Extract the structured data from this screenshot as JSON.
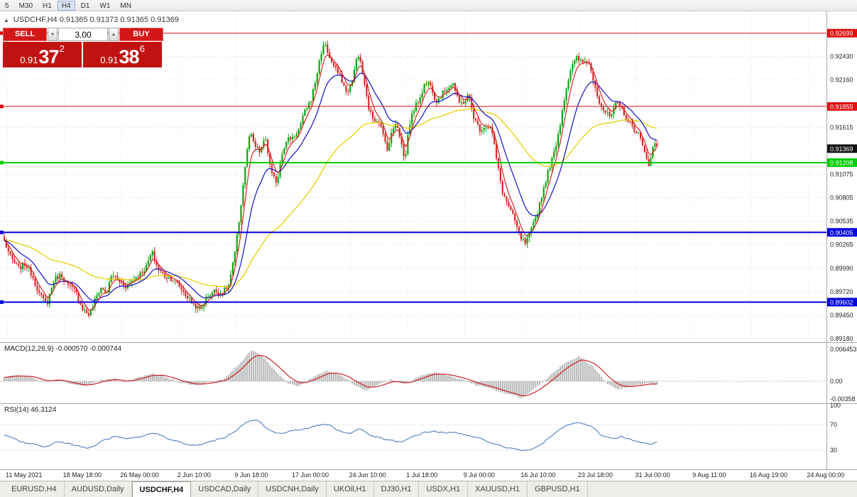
{
  "toolbar": {
    "items": [
      "5",
      "M30",
      "H1",
      "H4",
      "D1",
      "W1",
      "MN"
    ],
    "active": "H4"
  },
  "chart_header": {
    "collapse_icon": "▲",
    "ohlc_text": "USDCHF,H4 0.91365 0.91373 0.91365 0.91369"
  },
  "trade_panel": {
    "sell_label": "SELL",
    "buy_label": "BUY",
    "volume": "3.00",
    "spin_up_icon": "▲",
    "spin_down_icon": "▼",
    "sell_price": {
      "prefix": "0.91",
      "big": "37",
      "sup": "2"
    },
    "buy_price": {
      "prefix": "0.91",
      "big": "38",
      "sup": "6"
    }
  },
  "tabs": {
    "active": "USDCHF,H4",
    "items": [
      "EURUSD,H4",
      "AUDUSD,Daily",
      "USDCHF,H4",
      "USDCAD,Daily",
      "USDCNH,Daily",
      "UKOil,H1",
      "DJ30,H1",
      "USDX,H1",
      "XAUUSD,H1",
      "GBPUSD,H1"
    ]
  },
  "chart_data": {
    "type": "candlestick",
    "symbol": "USDCHF",
    "timeframe": "H4",
    "ohlc": {
      "open": 0.91365,
      "high": 0.91373,
      "low": 0.91365,
      "close": 0.91369
    },
    "ylim": [
      0.8914,
      0.9295
    ],
    "y_ticks": [
      "0.92430",
      "0.92160",
      "0.91615",
      "0.91075",
      "0.90805",
      "0.90535",
      "0.90265",
      "0.89990",
      "0.89720",
      "0.89450",
      "0.89180"
    ],
    "x_labels": [
      "11 May 2021",
      "18 May 18:00",
      "26 May 00:00",
      "2 Jun 10:00",
      "9 Jun 18:00",
      "17 Jun 00:00",
      "24 Jun 10:00",
      "1 Jul 18:00",
      "9 Jul 00:00",
      "16 Jul 10:00",
      "23 Jul 18:00",
      "31 Jul 00:00",
      "9 Aug 11:00",
      "16 Aug 19:00",
      "24 Aug 00:00"
    ],
    "hlines": [
      {
        "price": 0.92699,
        "label": "0.92699",
        "color": "#e01010",
        "width": 1
      },
      {
        "price": 0.91855,
        "label": "0.91855",
        "color": "#e01010",
        "width": 1
      },
      {
        "price": 0.91208,
        "label": "0.91208",
        "color": "#00cc00",
        "width": 2
      },
      {
        "price": 0.90405,
        "label": "0.90405",
        "color": "#0000dd",
        "width": 2
      },
      {
        "price": 0.89602,
        "label": "0.89602",
        "color": "#0000dd",
        "width": 2
      }
    ],
    "current_price": {
      "value": 0.91369,
      "label": "0.91369",
      "badge_color": "#111111"
    },
    "candle_up_color": "#0fa30f",
    "candle_down_color": "#d42a2a",
    "ma_colors": {
      "fast": "#dd1111",
      "mid": "#1111cc",
      "slow": "#e8cf00"
    },
    "price_path": [
      [
        0,
        0.9046
      ],
      [
        8,
        0.9026
      ],
      [
        16,
        0.901
      ],
      [
        26,
        0.8999
      ],
      [
        36,
        0.9004
      ],
      [
        46,
        0.899
      ],
      [
        56,
        0.8968
      ],
      [
        66,
        0.8958
      ],
      [
        76,
        0.8986
      ],
      [
        86,
        0.8992
      ],
      [
        96,
        0.8979
      ],
      [
        106,
        0.8973
      ],
      [
        116,
        0.8953
      ],
      [
        126,
        0.8945
      ],
      [
        134,
        0.8963
      ],
      [
        142,
        0.8977
      ],
      [
        150,
        0.897
      ],
      [
        158,
        0.8993
      ],
      [
        168,
        0.8984
      ],
      [
        178,
        0.8978
      ],
      [
        188,
        0.8987
      ],
      [
        198,
        0.8993
      ],
      [
        206,
        0.9001
      ],
      [
        214,
        0.9018
      ],
      [
        222,
        0.8999
      ],
      [
        232,
        0.899
      ],
      [
        242,
        0.8987
      ],
      [
        252,
        0.8979
      ],
      [
        262,
        0.8968
      ],
      [
        272,
        0.8958
      ],
      [
        282,
        0.8951
      ],
      [
        292,
        0.8967
      ],
      [
        302,
        0.8973
      ],
      [
        312,
        0.897
      ],
      [
        322,
        0.8979
      ],
      [
        330,
        0.9012
      ],
      [
        338,
        0.9062
      ],
      [
        346,
        0.9122
      ],
      [
        352,
        0.9156
      ],
      [
        358,
        0.9141
      ],
      [
        366,
        0.9133
      ],
      [
        374,
        0.9149
      ],
      [
        382,
        0.9108
      ],
      [
        390,
        0.9098
      ],
      [
        398,
        0.9136
      ],
      [
        406,
        0.9148
      ],
      [
        414,
        0.9151
      ],
      [
        422,
        0.9161
      ],
      [
        430,
        0.9181
      ],
      [
        438,
        0.9193
      ],
      [
        446,
        0.9221
      ],
      [
        452,
        0.9247
      ],
      [
        458,
        0.9259
      ],
      [
        464,
        0.9241
      ],
      [
        472,
        0.9229
      ],
      [
        480,
        0.9219
      ],
      [
        488,
        0.9201
      ],
      [
        496,
        0.9212
      ],
      [
        502,
        0.9243
      ],
      [
        508,
        0.9237
      ],
      [
        514,
        0.9206
      ],
      [
        520,
        0.9181
      ],
      [
        526,
        0.9171
      ],
      [
        534,
        0.9169
      ],
      [
        540,
        0.9151
      ],
      [
        546,
        0.9136
      ],
      [
        552,
        0.9156
      ],
      [
        558,
        0.9169
      ],
      [
        564,
        0.9149
      ],
      [
        570,
        0.9121
      ],
      [
        576,
        0.9163
      ],
      [
        582,
        0.9181
      ],
      [
        590,
        0.9193
      ],
      [
        598,
        0.9211
      ],
      [
        606,
        0.9213
      ],
      [
        614,
        0.9191
      ],
      [
        622,
        0.9199
      ],
      [
        630,
        0.9207
      ],
      [
        638,
        0.9213
      ],
      [
        646,
        0.9189
      ],
      [
        654,
        0.9191
      ],
      [
        660,
        0.9199
      ],
      [
        668,
        0.9171
      ],
      [
        676,
        0.9159
      ],
      [
        684,
        0.9163
      ],
      [
        692,
        0.9161
      ],
      [
        700,
        0.9121
      ],
      [
        708,
        0.9086
      ],
      [
        716,
        0.9071
      ],
      [
        724,
        0.9056
      ],
      [
        732,
        0.9036
      ],
      [
        740,
        0.9027
      ],
      [
        748,
        0.9043
      ],
      [
        756,
        0.9061
      ],
      [
        764,
        0.9086
      ],
      [
        772,
        0.9111
      ],
      [
        780,
        0.9131
      ],
      [
        788,
        0.9161
      ],
      [
        796,
        0.9201
      ],
      [
        804,
        0.9229
      ],
      [
        812,
        0.9241
      ],
      [
        820,
        0.9236
      ],
      [
        828,
        0.9239
      ],
      [
        836,
        0.9216
      ],
      [
        844,
        0.9191
      ],
      [
        852,
        0.9179
      ],
      [
        860,
        0.9173
      ],
      [
        868,
        0.9189
      ],
      [
        876,
        0.9183
      ],
      [
        884,
        0.9169
      ],
      [
        892,
        0.9161
      ],
      [
        900,
        0.9153
      ],
      [
        908,
        0.9131
      ],
      [
        914,
        0.9119
      ],
      [
        921,
        0.9143
      ],
      [
        928,
        0.9137
      ]
    ],
    "macd": {
      "label": "MACD(12,26,9) -0.000570 -0.000744",
      "main_current": -0.00057,
      "signal_current": -0.000744,
      "scale_labels": [
        "0.006453",
        "0.00",
        "-0.00358"
      ],
      "histogram_color": "#b6b6b6",
      "signal_color": "#cc1111",
      "path": [
        [
          0,
          0.0006
        ],
        [
          20,
          0.0012
        ],
        [
          45,
          0.0008
        ],
        [
          60,
          -0.0003
        ],
        [
          80,
          0.0004
        ],
        [
          100,
          -0.0006
        ],
        [
          120,
          -0.001
        ],
        [
          140,
          0.0002
        ],
        [
          160,
          0.0006
        ],
        [
          175,
          -0.0002
        ],
        [
          195,
          0.0008
        ],
        [
          215,
          0.0016
        ],
        [
          235,
          0.0008
        ],
        [
          255,
          -0.0004
        ],
        [
          275,
          -0.0008
        ],
        [
          295,
          -0.0002
        ],
        [
          315,
          0.0004
        ],
        [
          335,
          0.0032
        ],
        [
          355,
          0.0064
        ],
        [
          370,
          0.005
        ],
        [
          390,
          0.0018
        ],
        [
          405,
          -0.0004
        ],
        [
          420,
          -0.001
        ],
        [
          440,
          0.0008
        ],
        [
          460,
          0.0022
        ],
        [
          480,
          0.0012
        ],
        [
          500,
          -0.0008
        ],
        [
          515,
          -0.0018
        ],
        [
          530,
          -0.0008
        ],
        [
          550,
          0.0004
        ],
        [
          570,
          -0.0006
        ],
        [
          590,
          0.001
        ],
        [
          610,
          0.0018
        ],
        [
          630,
          0.0012
        ],
        [
          650,
          0.0004
        ],
        [
          670,
          -0.0008
        ],
        [
          690,
          -0.0014
        ],
        [
          710,
          -0.0024
        ],
        [
          735,
          -0.0034
        ],
        [
          755,
          -0.0012
        ],
        [
          775,
          0.0012
        ],
        [
          795,
          0.0036
        ],
        [
          815,
          0.005
        ],
        [
          835,
          0.003
        ],
        [
          855,
          -0.0005
        ],
        [
          870,
          -0.0016
        ],
        [
          890,
          -0.001
        ],
        [
          910,
          -0.0004
        ],
        [
          928,
          -0.00057
        ]
      ]
    },
    "rsi": {
      "label": "RSI(14) 46.3124",
      "current": 46.3124,
      "levels": [
        70,
        30
      ],
      "scale_labels": [
        "100",
        "70",
        "30"
      ],
      "line_color": "#4a7fc1",
      "path": [
        [
          0,
          55
        ],
        [
          15,
          48
        ],
        [
          30,
          42
        ],
        [
          50,
          38
        ],
        [
          65,
          35
        ],
        [
          80,
          45
        ],
        [
          95,
          40
        ],
        [
          110,
          36
        ],
        [
          125,
          32
        ],
        [
          140,
          44
        ],
        [
          160,
          52
        ],
        [
          175,
          46
        ],
        [
          195,
          50
        ],
        [
          215,
          58
        ],
        [
          235,
          48
        ],
        [
          255,
          40
        ],
        [
          275,
          36
        ],
        [
          295,
          44
        ],
        [
          315,
          50
        ],
        [
          330,
          62
        ],
        [
          345,
          74
        ],
        [
          360,
          78
        ],
        [
          375,
          62
        ],
        [
          390,
          55
        ],
        [
          405,
          60
        ],
        [
          420,
          62
        ],
        [
          440,
          68
        ],
        [
          460,
          71
        ],
        [
          475,
          60
        ],
        [
          490,
          55
        ],
        [
          505,
          65
        ],
        [
          520,
          52
        ],
        [
          535,
          48
        ],
        [
          550,
          44
        ],
        [
          565,
          42
        ],
        [
          580,
          52
        ],
        [
          595,
          58
        ],
        [
          610,
          60
        ],
        [
          625,
          56
        ],
        [
          640,
          58
        ],
        [
          655,
          54
        ],
        [
          670,
          48
        ],
        [
          685,
          44
        ],
        [
          700,
          37
        ],
        [
          715,
          33
        ],
        [
          730,
          30
        ],
        [
          740,
          28
        ],
        [
          755,
          38
        ],
        [
          770,
          48
        ],
        [
          785,
          62
        ],
        [
          800,
          71
        ],
        [
          815,
          73
        ],
        [
          830,
          67
        ],
        [
          845,
          52
        ],
        [
          860,
          48
        ],
        [
          875,
          52
        ],
        [
          890,
          44
        ],
        [
          905,
          40
        ],
        [
          915,
          38
        ],
        [
          928,
          46.3
        ]
      ]
    }
  }
}
